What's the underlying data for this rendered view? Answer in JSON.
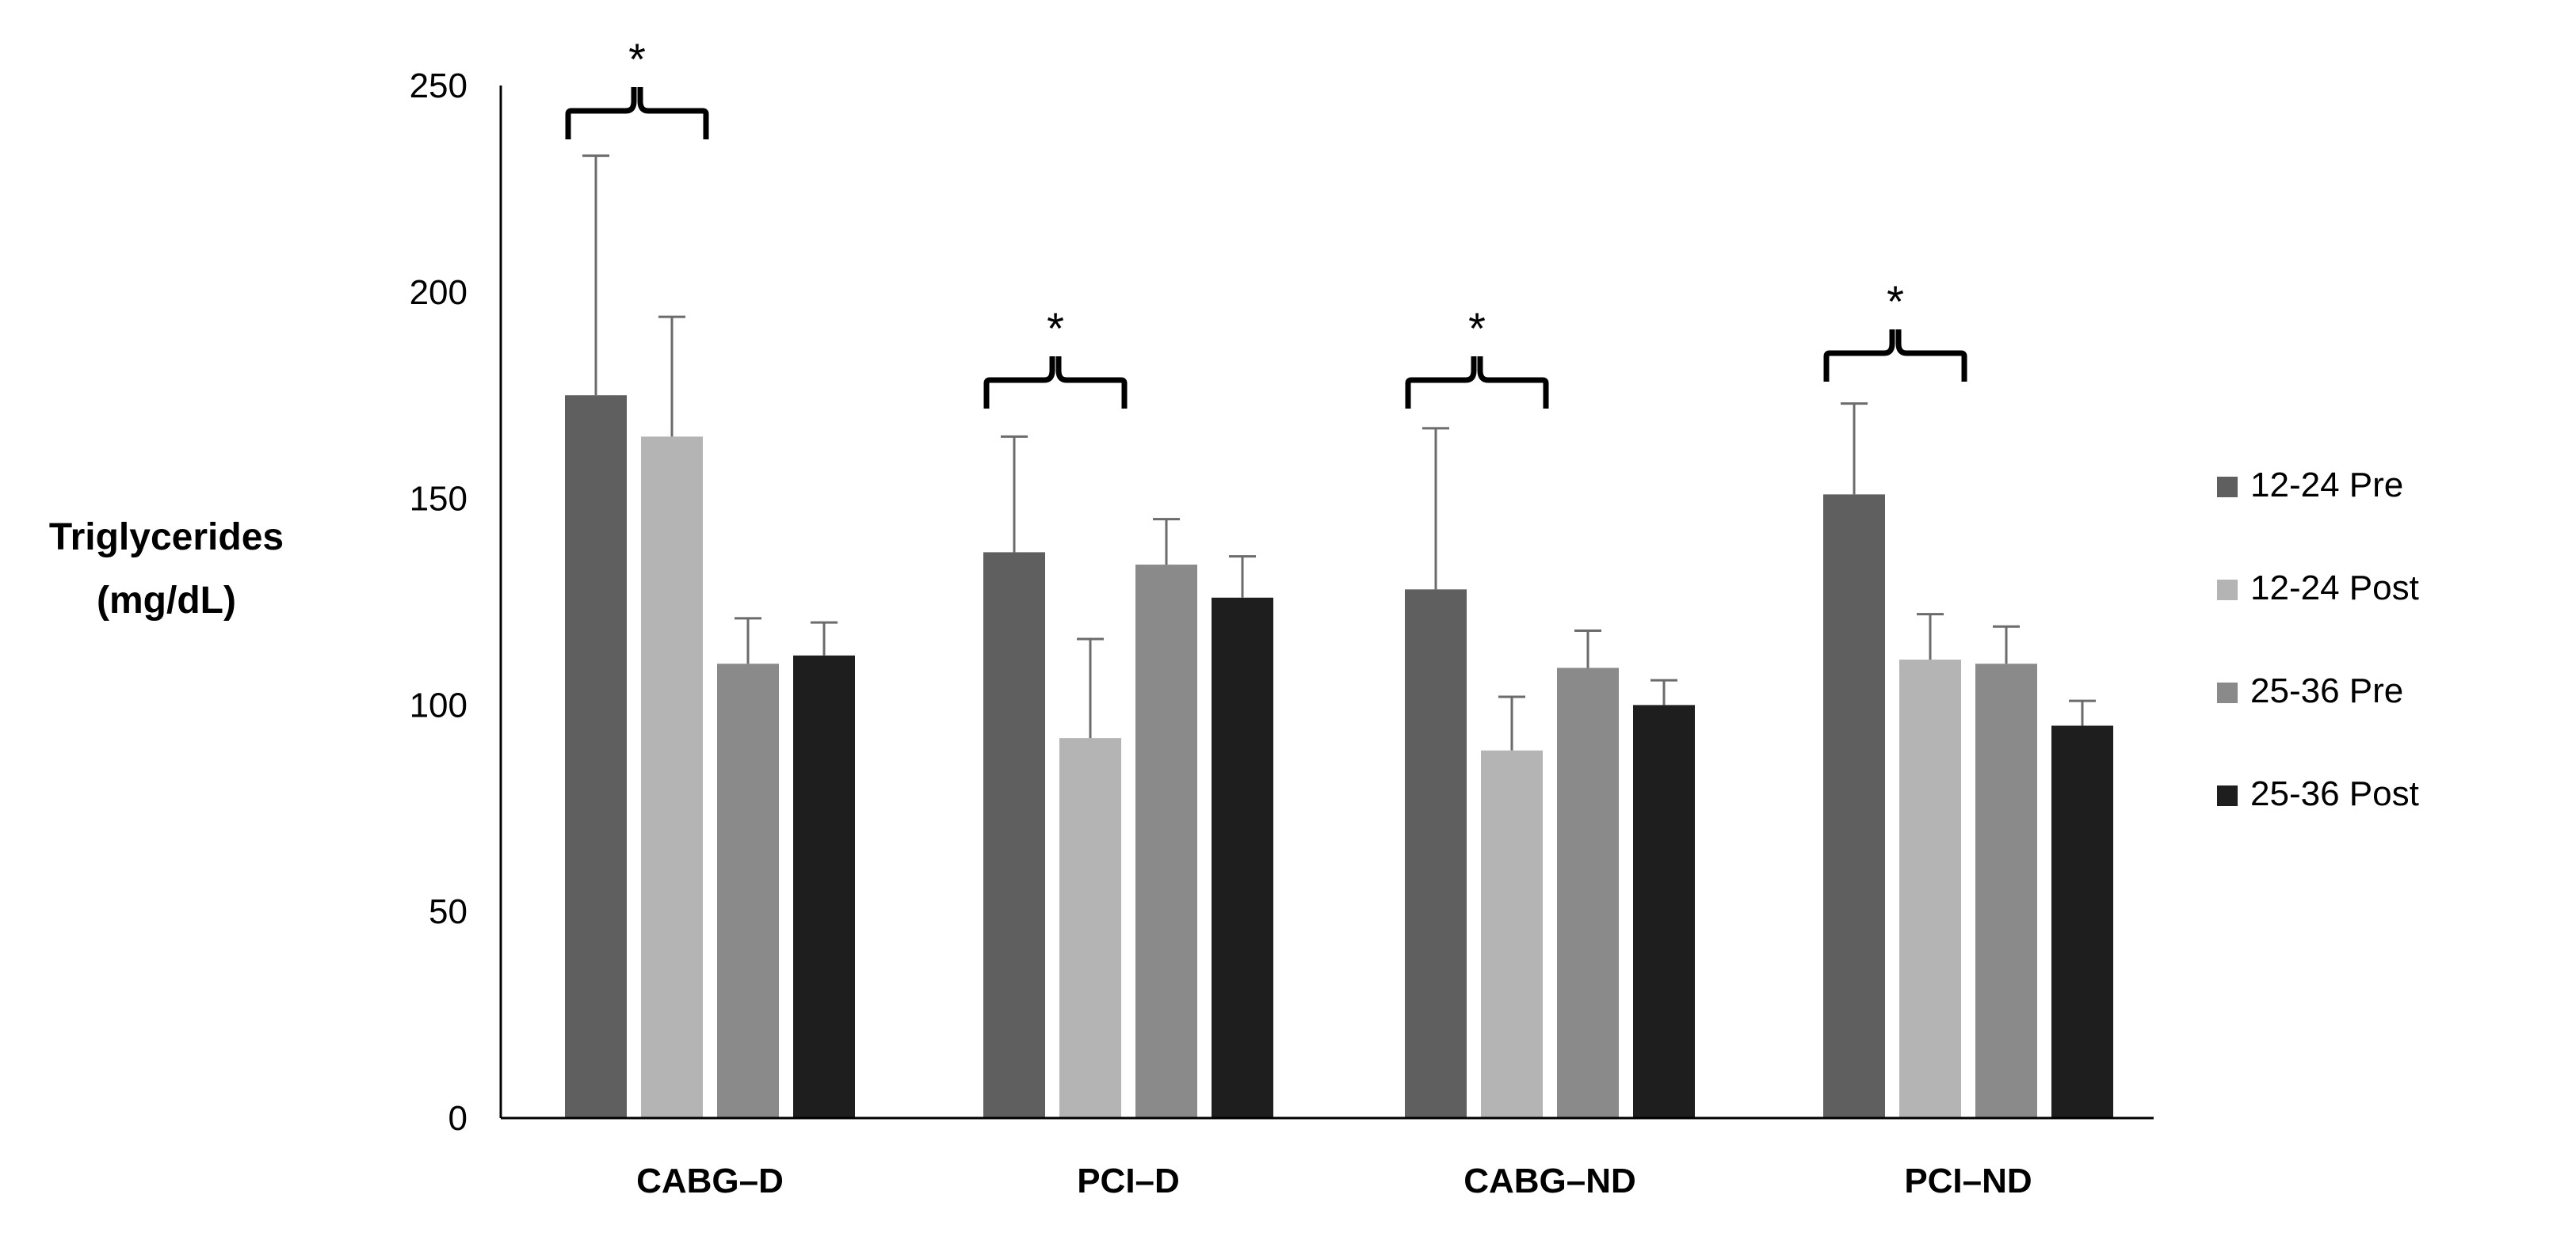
{
  "chart_data": {
    "type": "bar",
    "title": "",
    "xlabel": "",
    "ylabel": [
      "Triglycerides",
      "(mg/dL)"
    ],
    "ylim": [
      0,
      250
    ],
    "yticks": [
      "0",
      "50",
      "100",
      "150",
      "200",
      "250"
    ],
    "categories": [
      "CABG–D",
      "PCI–D",
      "CABG–ND",
      "PCI–ND"
    ],
    "series": [
      {
        "name": "12-24 Pre",
        "color": "#5f5f5f",
        "values": [
          175,
          137,
          128,
          151
        ],
        "errors": [
          58,
          28,
          39,
          22
        ]
      },
      {
        "name": "12-24 Post",
        "color": "#b4b4b4",
        "values": [
          165,
          92,
          89,
          111
        ],
        "errors": [
          29,
          24,
          13,
          11
        ]
      },
      {
        "name": "25-36 Pre",
        "color": "#8a8a8a",
        "values": [
          110,
          134,
          109,
          110
        ],
        "errors": [
          11,
          11,
          9,
          9
        ]
      },
      {
        "name": "25-36 Post",
        "color": "#1e1e1e",
        "values": [
          112,
          126,
          100,
          95
        ],
        "errors": [
          8,
          10,
          6,
          6
        ]
      }
    ],
    "significance": [
      {
        "category": "CABG–D",
        "label": "*"
      },
      {
        "category": "PCI–D",
        "label": "*"
      },
      {
        "category": "CABG–ND",
        "label": "*"
      },
      {
        "category": "PCI–ND",
        "label": "*"
      }
    ],
    "legend_position": "right"
  }
}
